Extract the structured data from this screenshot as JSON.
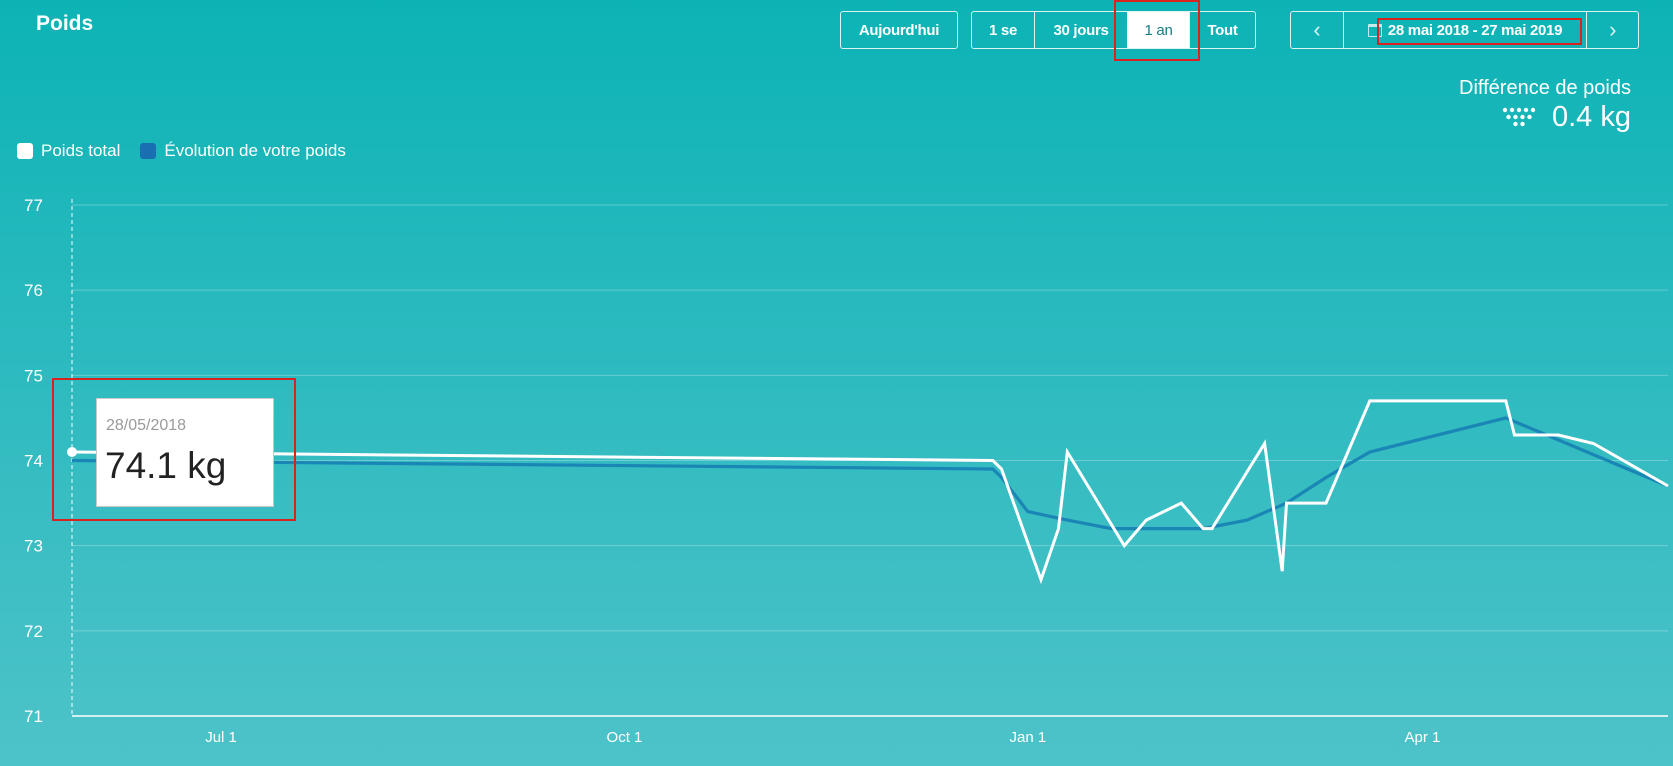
{
  "header": {
    "title": "Poids",
    "today_label": "Aujourd'hui",
    "periods": [
      "1 se",
      "30 jours",
      "1 an",
      "Tout"
    ],
    "active_period": "1 an",
    "prev_symbol": "‹",
    "next_symbol": "›",
    "date_range": "28 mai 2018 - 27 mai 2019"
  },
  "summary": {
    "label": "Différence de poids",
    "value": "0.4 kg",
    "icon": "scale-icon"
  },
  "tooltip": {
    "date": "28/05/2018",
    "value": "74.1 kg"
  },
  "colors": {
    "total": "#ffffff",
    "trend": "#1a86b5",
    "highlight": "#d9231f"
  },
  "chart_data": {
    "type": "line",
    "x_range": [
      "2018-05-28",
      "2019-05-27"
    ],
    "ylim": [
      71,
      77
    ],
    "yticks": [
      77,
      76,
      75,
      74,
      73,
      72,
      71
    ],
    "xticks": [
      {
        "label": "Jul 1",
        "date": "2018-07-01"
      },
      {
        "label": "Oct 1",
        "date": "2018-10-01"
      },
      {
        "label": "Jan 1",
        "date": "2019-01-01"
      },
      {
        "label": "Apr 1",
        "date": "2019-04-01"
      }
    ],
    "legend_position": "top-left",
    "grid": true,
    "series": [
      {
        "name": "Poids total",
        "color": "#ffffff",
        "points": [
          [
            "2018-05-28",
            74.1
          ],
          [
            "2018-12-24",
            74.0
          ],
          [
            "2018-12-26",
            73.9
          ],
          [
            "2019-01-04",
            72.6
          ],
          [
            "2019-01-08",
            73.2
          ],
          [
            "2019-01-10",
            74.1
          ],
          [
            "2019-01-23",
            73.0
          ],
          [
            "2019-01-28",
            73.3
          ],
          [
            "2019-02-05",
            73.5
          ],
          [
            "2019-02-10",
            73.2
          ],
          [
            "2019-02-12",
            73.2
          ],
          [
            "2019-02-24",
            74.2
          ],
          [
            "2019-02-28",
            72.7
          ],
          [
            "2019-03-01",
            73.5
          ],
          [
            "2019-03-10",
            73.5
          ],
          [
            "2019-03-20",
            74.7
          ],
          [
            "2019-04-20",
            74.7
          ],
          [
            "2019-04-22",
            74.3
          ],
          [
            "2019-05-02",
            74.3
          ],
          [
            "2019-05-10",
            74.2
          ],
          [
            "2019-05-27",
            73.7
          ]
        ]
      },
      {
        "name": "Évolution de votre poids",
        "color": "#1a86b5",
        "points": [
          [
            "2018-05-28",
            74.0
          ],
          [
            "2018-12-24",
            73.9
          ],
          [
            "2018-12-26",
            73.8
          ],
          [
            "2019-01-01",
            73.4
          ],
          [
            "2019-01-10",
            73.3
          ],
          [
            "2019-01-20",
            73.2
          ],
          [
            "2019-02-10",
            73.2
          ],
          [
            "2019-02-20",
            73.3
          ],
          [
            "2019-03-01",
            73.5
          ],
          [
            "2019-03-10",
            73.8
          ],
          [
            "2019-03-20",
            74.1
          ],
          [
            "2019-04-20",
            74.5
          ],
          [
            "2019-05-27",
            73.7
          ]
        ]
      }
    ]
  }
}
